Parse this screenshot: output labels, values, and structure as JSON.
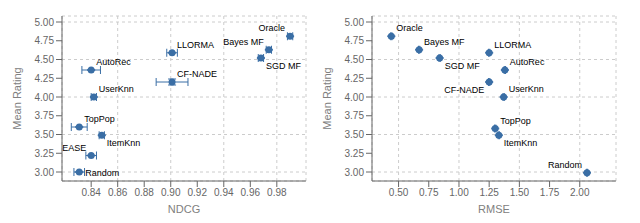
{
  "chart_data": [
    {
      "type": "scatter",
      "xlabel": "NDCG",
      "ylabel": "Mean Rating",
      "xlim": [
        0.818,
        1.002
      ],
      "ylim": [
        2.88,
        5.08
      ],
      "xticks": [
        0.84,
        0.86,
        0.88,
        {
          "value": 0.9,
          "label": "0.90"
        },
        0.92,
        0.94,
        0.96,
        0.98
      ],
      "yticks": [
        {
          "value": 3,
          "label": "3.00"
        },
        3.25,
        {
          "value": 3.5,
          "label": "3.50"
        },
        3.75,
        {
          "value": 4,
          "label": "4.00"
        },
        4.25,
        {
          "value": 4.5,
          "label": "4.50"
        },
        4.75,
        {
          "value": 5,
          "label": "5.00"
        }
      ],
      "grid": true,
      "color": "#3a6ea5",
      "marker": "circle",
      "labels": [
        "Oracle",
        "Bayes MF",
        "SGD MF",
        "LLORMA",
        "CF-NADE",
        "AutoRec",
        "UserKnn",
        "TopPop",
        "ItemKnn",
        "EASE",
        "Random"
      ],
      "x": [
        0.99,
        0.974,
        0.968,
        0.901,
        0.901,
        0.84,
        0.842,
        0.831,
        0.848,
        0.84,
        0.831
      ],
      "values": [
        4.81,
        4.63,
        4.52,
        4.59,
        4.2,
        4.36,
        4.0,
        3.6,
        3.49,
        3.22,
        3.0
      ],
      "xerr": [
        0.002,
        0.002,
        0.002,
        0.004,
        0.012,
        0.007,
        0.002,
        0.006,
        0.002,
        0.004,
        0.004
      ],
      "yerr": [
        0.005,
        0.005,
        0.005,
        0.005,
        0.04,
        0.005,
        0.005,
        0.005,
        0.005,
        0.005,
        0.005
      ]
    },
    {
      "type": "scatter",
      "xlabel": "RMSE",
      "ylabel": "Mean Rating",
      "xlim": [
        0.28,
        2.3
      ],
      "ylim": [
        2.88,
        5.08
      ],
      "xticks": [
        {
          "value": 0.5,
          "label": "0.50"
        },
        0.75,
        {
          "value": 1,
          "label": "1.00"
        },
        1.25,
        {
          "value": 1.5,
          "label": "1.50"
        },
        1.75,
        {
          "value": 2,
          "label": "2.00"
        }
      ],
      "yticks": [
        {
          "value": 3,
          "label": "3.00"
        },
        3.25,
        {
          "value": 3.5,
          "label": "3.50"
        },
        3.75,
        {
          "value": 4,
          "label": "4.00"
        },
        4.25,
        {
          "value": 4.5,
          "label": "4.50"
        },
        4.75,
        {
          "value": 5,
          "label": "5.00"
        }
      ],
      "grid": true,
      "color": "#3a6ea5",
      "marker": "circle",
      "labels": [
        "Oracle",
        "Bayes MF",
        "SGD MF",
        "LLORMA",
        "CF-NADE",
        "AutoRec",
        "UserKnn",
        "TopPop",
        "ItemKnn",
        "Random"
      ],
      "x": [
        0.44,
        0.67,
        0.84,
        1.25,
        1.25,
        1.38,
        1.37,
        1.3,
        1.33,
        2.06
      ],
      "values": [
        4.81,
        4.63,
        4.52,
        4.59,
        4.2,
        4.36,
        4.0,
        3.58,
        3.49,
        2.99
      ],
      "xerr": [
        0.005,
        0.005,
        0.005,
        0.005,
        0.005,
        0.005,
        0.005,
        0.005,
        0.005,
        0.005
      ],
      "yerr": [
        0.005,
        0.005,
        0.005,
        0.005,
        0.005,
        0.005,
        0.005,
        0.005,
        0.005,
        0.005
      ]
    }
  ]
}
